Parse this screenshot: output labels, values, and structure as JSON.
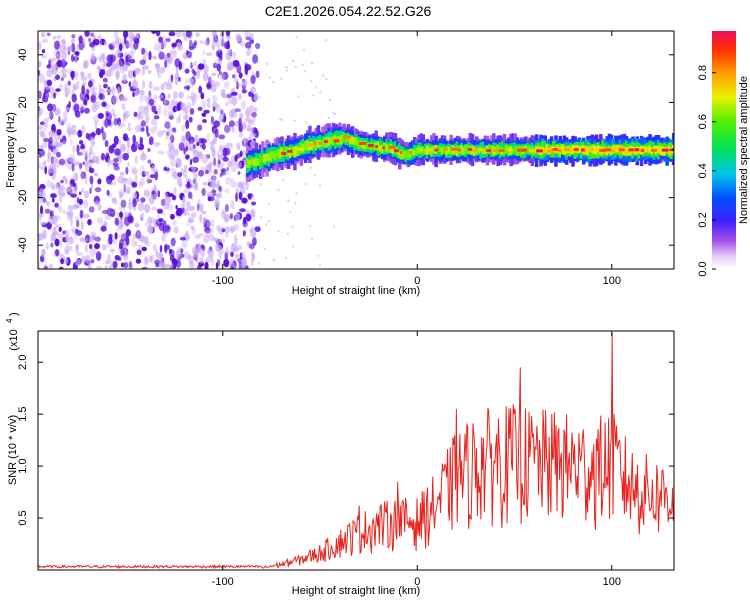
{
  "title": "C2E1.2026.054.22.52.G26",
  "chart_data": [
    {
      "type": "heatmap",
      "name": "spectrogram",
      "xlabel": "Height of straight line (km)",
      "ylabel": "Frequency (Hz)",
      "xlim": [
        -195,
        132
      ],
      "ylim": [
        -50,
        50
      ],
      "xticks": [
        -100,
        0,
        100
      ],
      "yticks": [
        -40,
        -20,
        0,
        20,
        40
      ],
      "noise_region_x": [
        -195,
        -82
      ],
      "signal_track": {
        "x": [
          -88,
          -80,
          -74,
          -68,
          -62,
          -56,
          -50,
          -44,
          -38,
          -32,
          -26,
          -20,
          -14,
          -10,
          -6,
          0,
          10,
          20,
          30,
          40,
          60,
          80,
          100,
          120,
          132
        ],
        "y": [
          -6,
          -4,
          -2,
          -1,
          0,
          2,
          3,
          4,
          5,
          3,
          2,
          1,
          1,
          -1,
          -2,
          0,
          0,
          0,
          0,
          0,
          0,
          0,
          0,
          0,
          0
        ]
      },
      "colorbar": {
        "label": "Normalized spectral amplitude",
        "ticks": [
          0.0,
          0.2,
          0.4,
          0.6,
          0.8
        ],
        "range": [
          0,
          0.97
        ]
      }
    },
    {
      "type": "line",
      "name": "snr",
      "xlabel": "Height of straight line (km)",
      "ylabel": "SNR (10 * v/v)",
      "scale_label": "(x10",
      "scale_exp": "4",
      "xlim": [
        -195,
        132
      ],
      "ylim": [
        0,
        2.3
      ],
      "xticks": [
        -100,
        0,
        100
      ],
      "yticks": [
        0.5,
        1.0,
        1.5,
        2.0
      ],
      "color": "#e8231e",
      "envelope": {
        "x": [
          -195,
          -80,
          -70,
          -60,
          -50,
          -40,
          -30,
          -20,
          -10,
          0,
          10,
          20,
          30,
          40,
          50,
          60,
          70,
          80,
          90,
          100,
          110,
          120,
          132
        ],
        "y": [
          0.03,
          0.03,
          0.08,
          0.15,
          0.25,
          0.4,
          0.55,
          0.65,
          0.7,
          0.7,
          0.95,
          1.35,
          1.5,
          1.6,
          1.6,
          1.55,
          1.55,
          1.5,
          1.45,
          1.55,
          1.2,
          1.1,
          1.05
        ]
      },
      "peaks": [
        {
          "x": 100,
          "y": 2.28
        },
        {
          "x": 53,
          "y": 1.95
        },
        {
          "x": 20,
          "y": 1.55
        },
        {
          "x": -30,
          "y": 0.62
        },
        {
          "x": -10,
          "y": 0.85
        }
      ]
    }
  ],
  "colors": {
    "noise_dark": "#5a10d8",
    "noise_light": "#c9a8f4",
    "snr_line": "#e8231e"
  }
}
